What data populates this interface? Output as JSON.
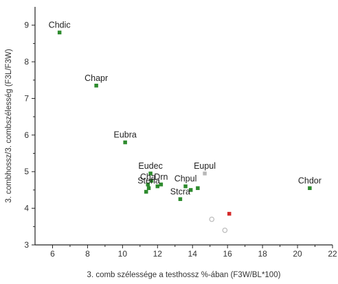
{
  "chart_data": {
    "type": "scatter",
    "xlabel": "3. comb szélessége a testhossz %-ában (F3W/BL*100)",
    "ylabel": "3. combhossz/3. combszélesség (F3L/F3W)",
    "xlim": [
      5,
      22
    ],
    "ylim": [
      3,
      9.5
    ],
    "xticks": [
      6,
      8,
      10,
      12,
      14,
      16,
      18,
      20,
      22
    ],
    "yticks": [
      3,
      4,
      5,
      6,
      7,
      8,
      9
    ],
    "grid": false,
    "colors": {
      "green": "#2e8b2e",
      "red": "#d42a2a",
      "gray": "#b8b8b8",
      "axis": "#222222"
    },
    "labeled_points": [
      {
        "label": "Chdic",
        "x": 6.4,
        "y": 8.8,
        "color": "green"
      },
      {
        "label": "Chapr",
        "x": 8.5,
        "y": 7.35,
        "color": "green"
      },
      {
        "label": "Eubra",
        "x": 10.15,
        "y": 5.8,
        "color": "green"
      },
      {
        "label": "Eudec",
        "x": 11.6,
        "y": 4.95,
        "color": "green"
      },
      {
        "label": "Cha",
        "x": 11.45,
        "y": 4.65,
        "color": "green"
      },
      {
        "label": "Stena",
        "x": 11.5,
        "y": 4.55,
        "color": "green"
      },
      {
        "label": "Drn",
        "x": 12.2,
        "y": 4.65,
        "color": "green"
      },
      {
        "label": "Chpul",
        "x": 13.6,
        "y": 4.6,
        "color": "green"
      },
      {
        "label": "Eupul",
        "x": 14.7,
        "y": 4.95,
        "color": "gray"
      },
      {
        "label": "Stcra",
        "x": 13.3,
        "y": 4.25,
        "color": "green"
      },
      {
        "label": "Chdor",
        "x": 20.7,
        "y": 4.55,
        "color": "green"
      }
    ],
    "other_points": [
      {
        "x": 11.35,
        "y": 4.45,
        "color": "green"
      },
      {
        "x": 11.65,
        "y": 4.75,
        "color": "green"
      },
      {
        "x": 12.0,
        "y": 4.6,
        "color": "green"
      },
      {
        "x": 13.9,
        "y": 4.5,
        "color": "green"
      },
      {
        "x": 14.3,
        "y": 4.55,
        "color": "green"
      },
      {
        "x": 16.1,
        "y": 3.85,
        "color": "red"
      },
      {
        "x": 15.1,
        "y": 3.7,
        "color": "gray",
        "hollow": true
      },
      {
        "x": 15.85,
        "y": 3.4,
        "color": "gray",
        "hollow": true
      }
    ]
  }
}
